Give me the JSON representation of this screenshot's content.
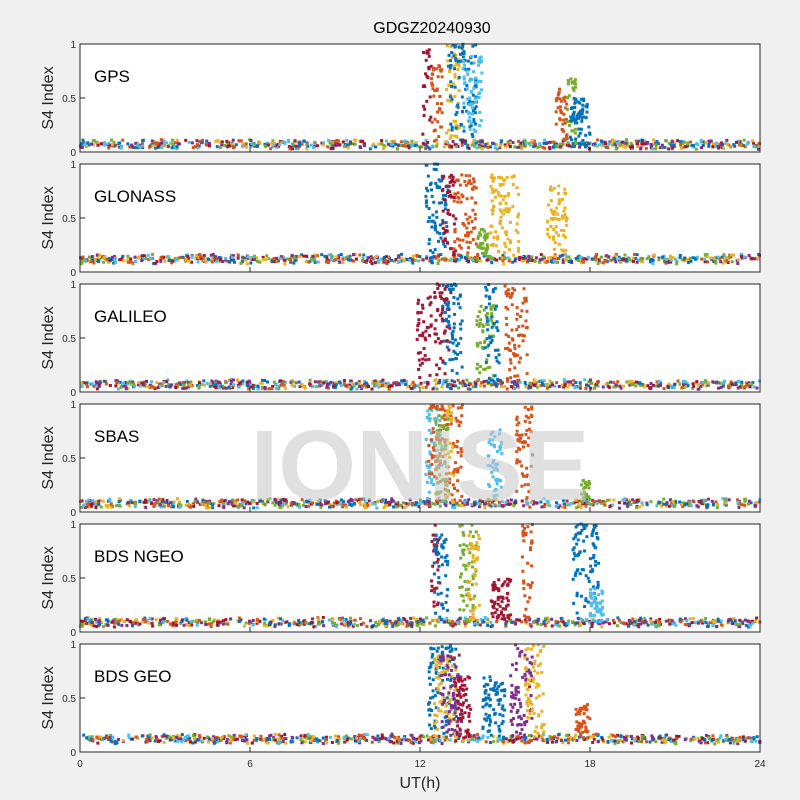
{
  "chart_data": {
    "type": "scatter",
    "title": "GDGZ20240930",
    "xlabel": "UT(h)",
    "ylabel": "S4 Index",
    "xlim": [
      0,
      24
    ],
    "ylim": [
      0,
      1
    ],
    "xticks": [
      "0",
      "6",
      "12",
      "18",
      "24"
    ],
    "xtick_values": [
      0,
      6,
      12,
      18,
      24
    ],
    "yticks": [
      "0",
      "0.5",
      "1"
    ],
    "ytick_values": [
      0,
      0.5,
      1
    ],
    "watermark": "IONISE",
    "colors": [
      "#0072BD",
      "#D95319",
      "#EDB120",
      "#7E2F8E",
      "#77AC30",
      "#4DBEEE",
      "#A2142F"
    ],
    "panels": [
      {
        "name": "GPS",
        "baseline": 0.07,
        "bursts": [
          {
            "c": 6,
            "t": [
              12.1,
              12.4
            ],
            "max": 0.95
          },
          {
            "c": 1,
            "t": [
              12.4,
              12.8
            ],
            "max": 0.8
          },
          {
            "c": 2,
            "t": [
              12.9,
              13.4
            ],
            "max": 1
          },
          {
            "c": 0,
            "t": [
              13.0,
              14.0
            ],
            "max": 1
          },
          {
            "c": 5,
            "t": [
              13.5,
              14.2
            ],
            "max": 0.9
          },
          {
            "c": 1,
            "t": [
              16.8,
              17.2
            ],
            "max": 0.6
          },
          {
            "c": 4,
            "t": [
              17.2,
              17.5
            ],
            "max": 0.7
          },
          {
            "c": 0,
            "t": [
              17.3,
              18.0
            ],
            "max": 0.5
          }
        ]
      },
      {
        "name": "GLONASS",
        "baseline": 0.12,
        "bursts": [
          {
            "c": 0,
            "t": [
              12.2,
              13.0
            ],
            "max": 1
          },
          {
            "c": 6,
            "t": [
              12.8,
              13.3
            ],
            "max": 0.9
          },
          {
            "c": 1,
            "t": [
              13.2,
              14.0
            ],
            "max": 0.9
          },
          {
            "c": 4,
            "t": [
              14.0,
              14.4
            ],
            "max": 0.4
          },
          {
            "c": 2,
            "t": [
              14.5,
              15.5
            ],
            "max": 0.9
          },
          {
            "c": 2,
            "t": [
              16.5,
              17.2
            ],
            "max": 0.8
          }
        ]
      },
      {
        "name": "GALILEO",
        "baseline": 0.07,
        "bursts": [
          {
            "c": 6,
            "t": [
              11.9,
              12.4
            ],
            "max": 0.9
          },
          {
            "c": 6,
            "t": [
              12.5,
              13.1
            ],
            "max": 1
          },
          {
            "c": 0,
            "t": [
              12.8,
              13.5
            ],
            "max": 1
          },
          {
            "c": 4,
            "t": [
              14.0,
              14.6
            ],
            "max": 0.8
          },
          {
            "c": 0,
            "t": [
              14.3,
              14.8
            ],
            "max": 1
          },
          {
            "c": 1,
            "t": [
              15.0,
              15.8
            ],
            "max": 1
          }
        ]
      },
      {
        "name": "SBAS",
        "baseline": 0.08,
        "bursts": [
          {
            "c": 5,
            "t": [
              12.2,
              12.8
            ],
            "max": 1
          },
          {
            "c": 1,
            "t": [
              12.3,
              13.5
            ],
            "max": 1
          },
          {
            "c": 2,
            "t": [
              12.9,
              13.2
            ],
            "max": 1
          },
          {
            "c": 4,
            "t": [
              12.5,
              13.0
            ],
            "max": 0.9
          },
          {
            "c": 5,
            "t": [
              14.4,
              14.9
            ],
            "max": 0.8
          },
          {
            "c": 1,
            "t": [
              15.4,
              16.0
            ],
            "max": 1
          },
          {
            "c": 4,
            "t": [
              17.7,
              18.0
            ],
            "max": 0.3
          }
        ]
      },
      {
        "name": "BDS NGEO",
        "baseline": 0.09,
        "bursts": [
          {
            "c": 6,
            "t": [
              12.4,
              12.7
            ],
            "max": 1
          },
          {
            "c": 0,
            "t": [
              12.5,
              13.0
            ],
            "max": 0.9
          },
          {
            "c": 4,
            "t": [
              13.4,
              14.0
            ],
            "max": 1
          },
          {
            "c": 2,
            "t": [
              13.7,
              14.1
            ],
            "max": 0.9
          },
          {
            "c": 6,
            "t": [
              14.5,
              15.2
            ],
            "max": 0.5
          },
          {
            "c": 1,
            "t": [
              15.6,
              16.0
            ],
            "max": 1
          },
          {
            "c": 0,
            "t": [
              17.4,
              18.3
            ],
            "max": 1
          },
          {
            "c": 5,
            "t": [
              18.0,
              18.5
            ],
            "max": 0.4
          }
        ]
      },
      {
        "name": "BDS GEO",
        "baseline": 0.12,
        "bursts": [
          {
            "c": 0,
            "t": [
              12.3,
              13.3
            ],
            "max": 1
          },
          {
            "c": 2,
            "t": [
              12.5,
              13.3
            ],
            "max": 0.9
          },
          {
            "c": 3,
            "t": [
              12.7,
              13.5
            ],
            "max": 0.9
          },
          {
            "c": 6,
            "t": [
              13.2,
              13.8
            ],
            "max": 0.7
          },
          {
            "c": 0,
            "t": [
              14.2,
              15.0
            ],
            "max": 0.7
          },
          {
            "c": 3,
            "t": [
              15.2,
              16.0
            ],
            "max": 1
          },
          {
            "c": 2,
            "t": [
              15.7,
              16.4
            ],
            "max": 1
          },
          {
            "c": 1,
            "t": [
              17.5,
              18.0
            ],
            "max": 0.45
          }
        ]
      }
    ]
  }
}
